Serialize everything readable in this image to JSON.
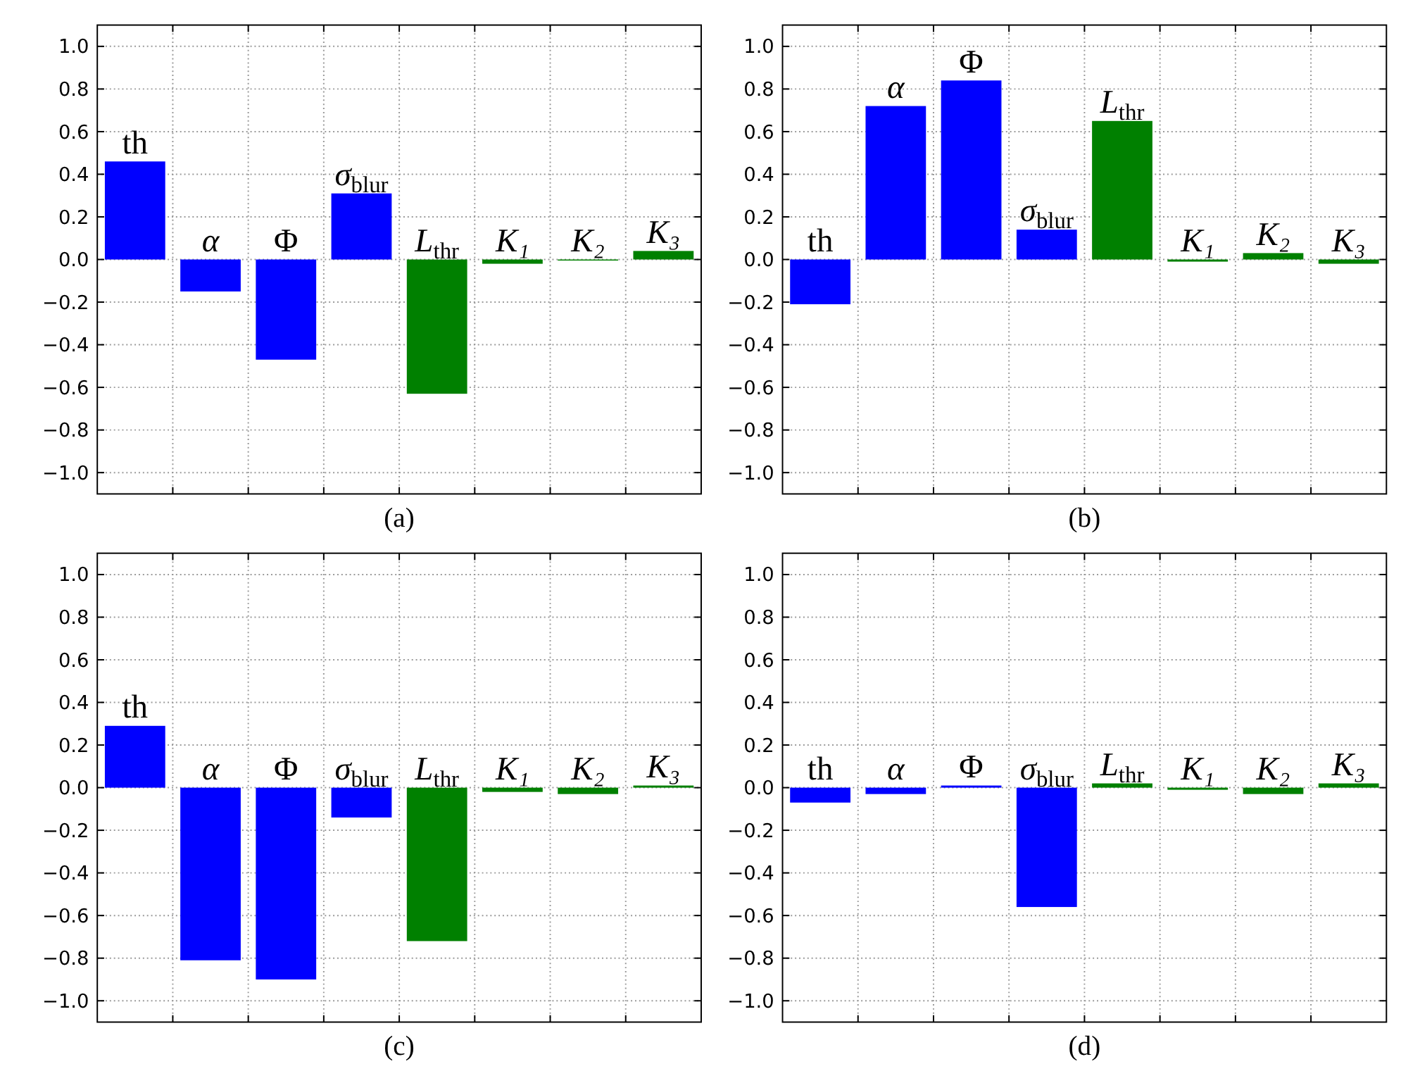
{
  "chart_data": [
    {
      "type": "bar",
      "xlabel": "(a)",
      "categories": [
        "th",
        "α",
        "Φ",
        "σ$_{blur}$",
        "L$_{thr}$",
        "K₁",
        "K₂",
        "K₃"
      ],
      "values": [
        0.46,
        -0.15,
        -0.47,
        0.31,
        -0.63,
        -0.02,
        -0.005,
        0.04
      ],
      "colors": [
        "#0000ff",
        "#0000ff",
        "#0000ff",
        "#0000ff",
        "#008000",
        "#008000",
        "#008000",
        "#008000"
      ],
      "ylim": [
        -1.1,
        1.1
      ],
      "yticks": [
        {
          "value": -1,
          "label": "−1.0"
        },
        {
          "value": -0.8,
          "label": "−0.8"
        },
        {
          "value": -0.6,
          "label": "−0.6"
        },
        {
          "value": -0.4,
          "label": "−0.4"
        },
        {
          "value": -0.2,
          "label": "−0.2"
        },
        {
          "value": 0,
          "label": "0.0"
        },
        0.2,
        0.4,
        0.6,
        0.8,
        {
          "value": 1,
          "label": "1.0"
        }
      ],
      "grid": true
    },
    {
      "type": "bar",
      "xlabel": "(b)",
      "categories": [
        "th",
        "α",
        "Φ",
        "σ$_{blur}$",
        "L$_{thr}$",
        "K₁",
        "K₂",
        "K₃"
      ],
      "values": [
        -0.21,
        0.72,
        0.84,
        0.14,
        0.65,
        -0.01,
        0.03,
        -0.02
      ],
      "colors": [
        "#0000ff",
        "#0000ff",
        "#0000ff",
        "#0000ff",
        "#008000",
        "#008000",
        "#008000",
        "#008000"
      ],
      "ylim": [
        -1.1,
        1.1
      ],
      "yticks": [
        {
          "value": -1,
          "label": "−1.0"
        },
        {
          "value": -0.8,
          "label": "−0.8"
        },
        {
          "value": -0.6,
          "label": "−0.6"
        },
        {
          "value": -0.4,
          "label": "−0.4"
        },
        {
          "value": -0.2,
          "label": "−0.2"
        },
        {
          "value": 0,
          "label": "0.0"
        },
        0.2,
        0.4,
        0.6,
        0.8,
        {
          "value": 1,
          "label": "1.0"
        }
      ],
      "grid": true
    },
    {
      "type": "bar",
      "xlabel": "(c)",
      "categories": [
        "th",
        "α",
        "Φ",
        "σ$_{blur}$",
        "L$_{thr}$",
        "K₁",
        "K₂",
        "K₃"
      ],
      "values": [
        0.29,
        -0.81,
        -0.9,
        -0.14,
        -0.72,
        -0.02,
        -0.03,
        0.01
      ],
      "colors": [
        "#0000ff",
        "#0000ff",
        "#0000ff",
        "#0000ff",
        "#008000",
        "#008000",
        "#008000",
        "#008000"
      ],
      "ylim": [
        -1.1,
        1.1
      ],
      "yticks": [
        {
          "value": -1,
          "label": "−1.0"
        },
        {
          "value": -0.8,
          "label": "−0.8"
        },
        {
          "value": -0.6,
          "label": "−0.6"
        },
        {
          "value": -0.4,
          "label": "−0.4"
        },
        {
          "value": -0.2,
          "label": "−0.2"
        },
        {
          "value": 0,
          "label": "0.0"
        },
        0.2,
        0.4,
        0.6,
        0.8,
        {
          "value": 1,
          "label": "1.0"
        }
      ],
      "grid": true
    },
    {
      "type": "bar",
      "xlabel": "(d)",
      "categories": [
        "th",
        "α",
        "Φ",
        "σ$_{blur}$",
        "L$_{thr}$",
        "K₁",
        "K₂",
        "K₃"
      ],
      "values": [
        -0.07,
        -0.03,
        0.01,
        -0.56,
        0.02,
        -0.01,
        -0.03,
        0.02
      ],
      "colors": [
        "#0000ff",
        "#0000ff",
        "#0000ff",
        "#0000ff",
        "#008000",
        "#008000",
        "#008000",
        "#008000"
      ],
      "ylim": [
        -1.1,
        1.1
      ],
      "yticks": [
        {
          "value": -1,
          "label": "−1.0"
        },
        {
          "value": -0.8,
          "label": "−0.8"
        },
        {
          "value": -0.6,
          "label": "−0.6"
        },
        {
          "value": -0.4,
          "label": "−0.4"
        },
        {
          "value": -0.2,
          "label": "−0.2"
        },
        {
          "value": 0,
          "label": "0.0"
        },
        0.2,
        0.4,
        0.6,
        0.8,
        {
          "value": 1,
          "label": "1.0"
        }
      ],
      "grid": true
    }
  ]
}
